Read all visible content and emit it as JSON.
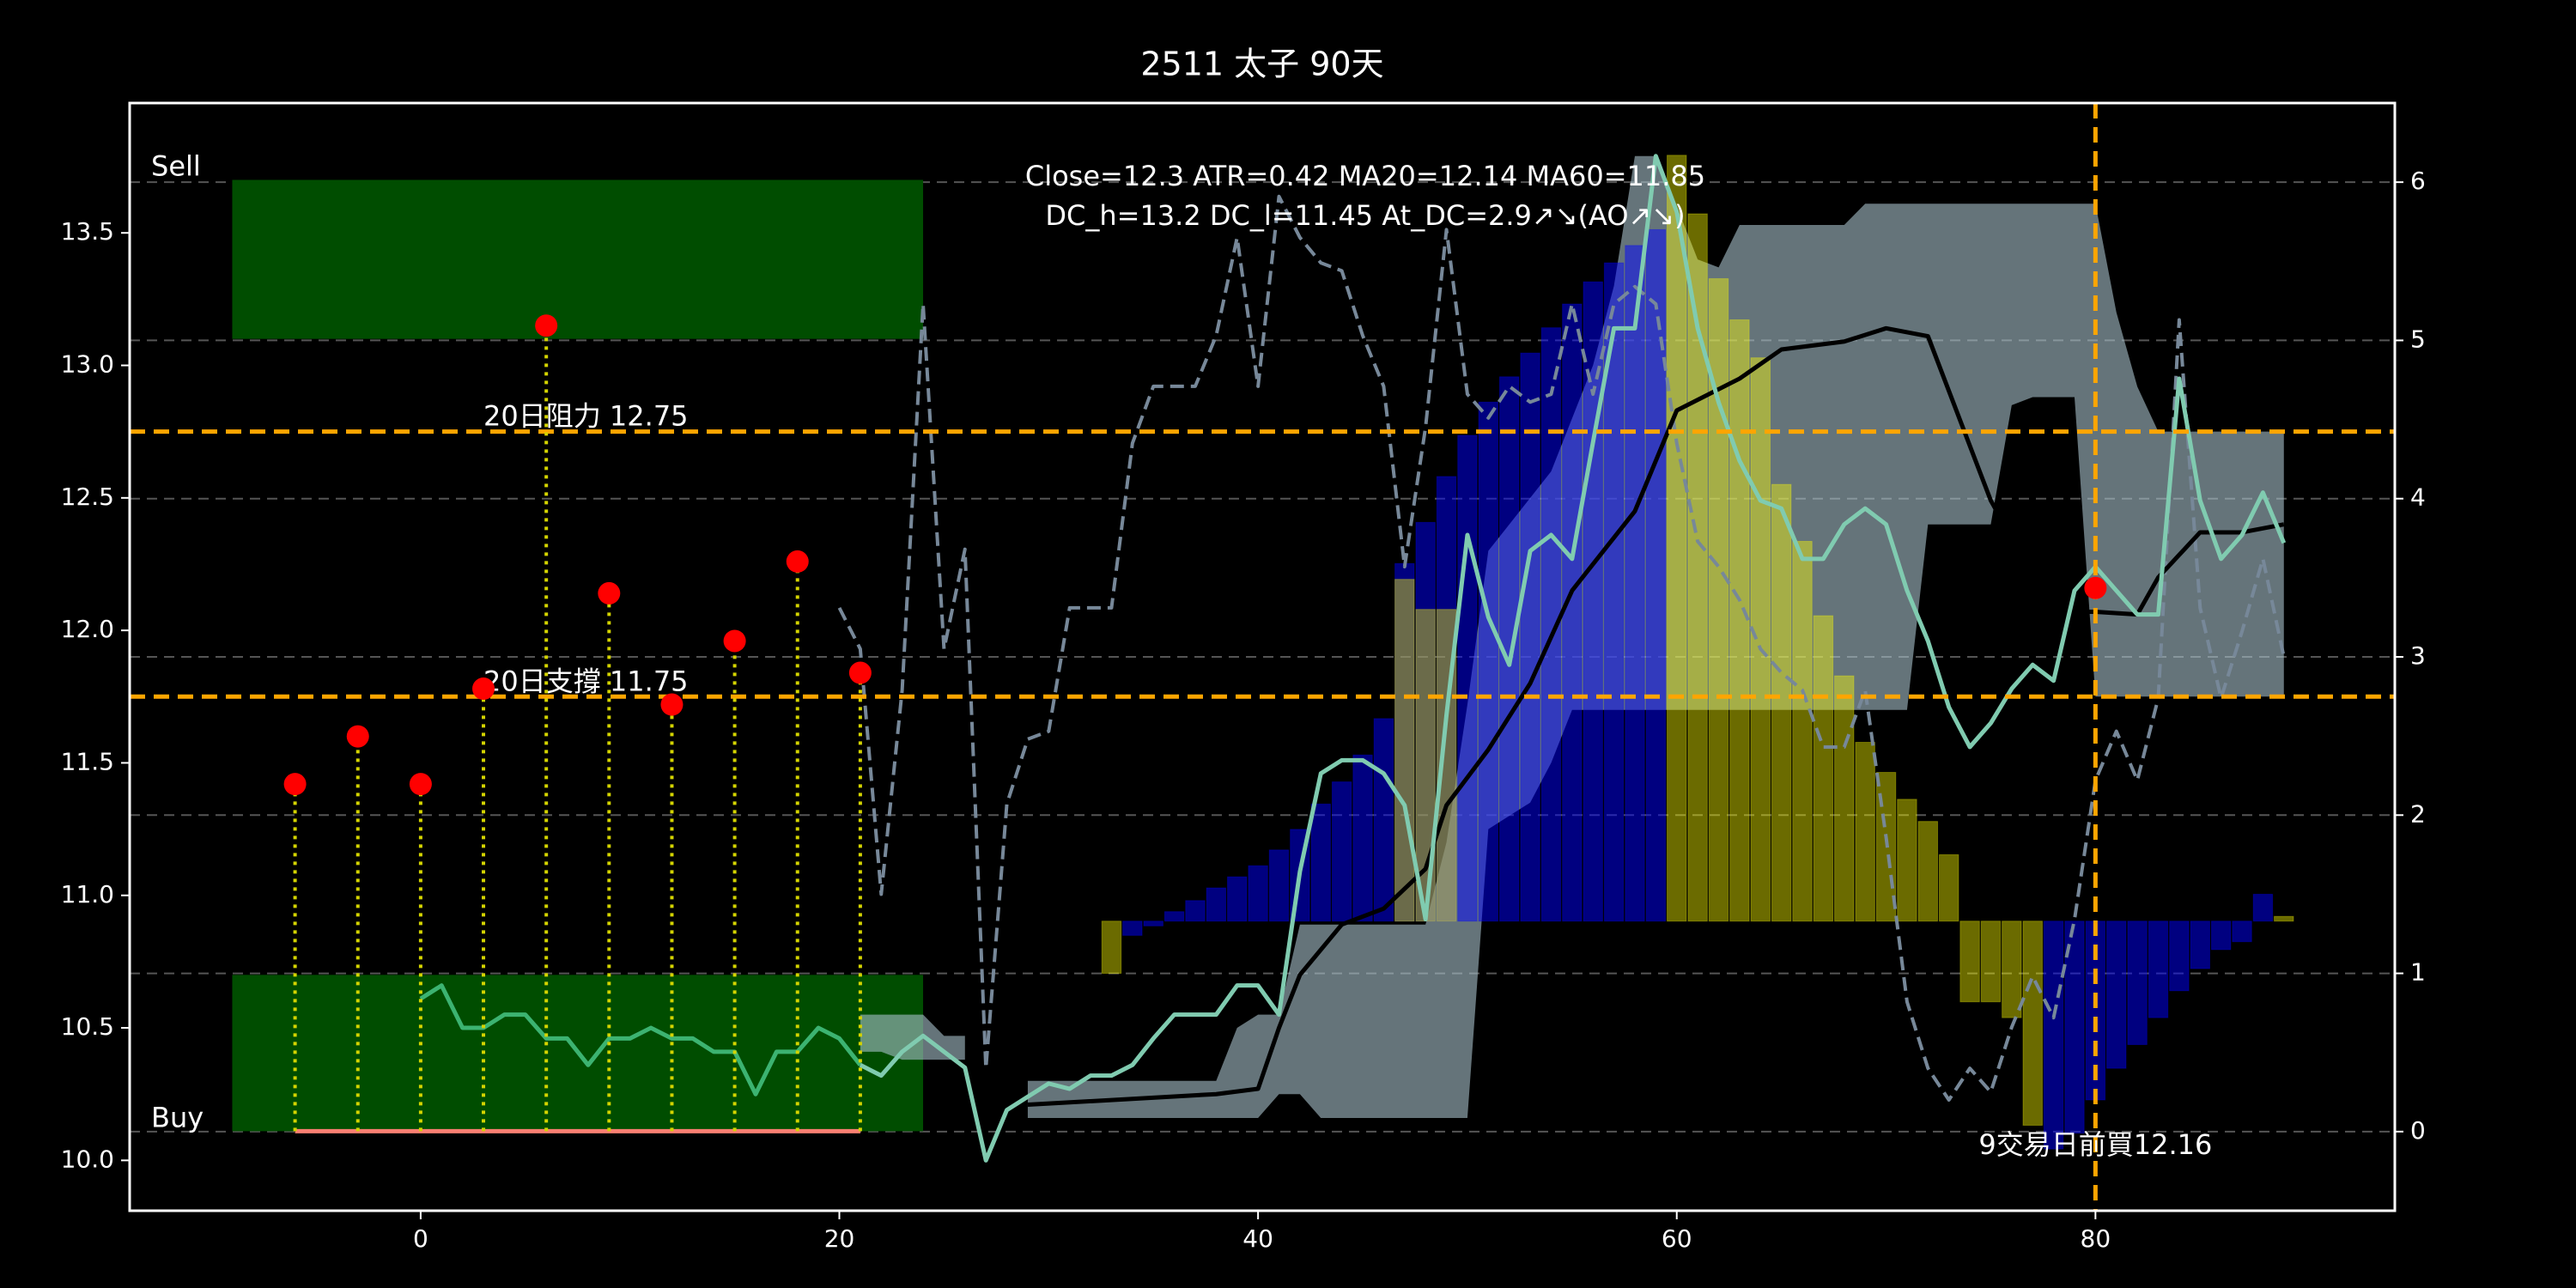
{
  "chart_data": {
    "type": "line",
    "title": "2511 太子 90天",
    "annotation": [
      "Close=12.3 ATR=0.42 MA20=12.14 MA60=11.85",
      "DC_h=13.2 DC_l=11.45 At_DC=2.9↗↘(AO↗↘)"
    ],
    "xlim": [
      -13.9,
      94.3
    ],
    "xticks": [
      0,
      20,
      40,
      60,
      80
    ],
    "ylim": [
      9.81,
      13.99
    ],
    "yticks": [
      {
        "value": 10,
        "label": "10.0"
      },
      10.5,
      {
        "value": 11,
        "label": "11.0"
      },
      11.5,
      {
        "value": 12,
        "label": "12.0"
      },
      12.5,
      {
        "value": 13,
        "label": "13.0"
      },
      13.5
    ],
    "y2lim": [
      -0.5,
      6.5
    ],
    "y2ticks": [
      0,
      1,
      2,
      3,
      4,
      5,
      6
    ],
    "grid": true,
    "zones": [
      {
        "label": "Sell",
        "x": [
          -9,
          24
        ],
        "y": [
          13.1,
          13.7
        ],
        "color": "#004d00"
      },
      {
        "label": "Buy",
        "x": [
          -9,
          24
        ],
        "y": [
          10.11,
          10.7
        ],
        "color": "#004d00"
      }
    ],
    "hlines": [
      {
        "value": 12.75,
        "label": "20日阻力 12.75",
        "color": "#ffa500"
      },
      {
        "value": 11.75,
        "label": "20日支撐 11.75",
        "color": "#ffa500"
      }
    ],
    "buy_marker": {
      "x": 80,
      "value": 12.16,
      "label": "9交易日前買12.16",
      "color": "#ff0000",
      "line_color": "#ffa500"
    },
    "signals": {
      "x": [
        -6,
        -3,
        0,
        3,
        6,
        9,
        12,
        15,
        18,
        21
      ],
      "values": [
        11.42,
        11.6,
        11.42,
        11.78,
        13.15,
        12.14,
        11.72,
        11.96,
        12.26,
        11.84
      ],
      "color": "#ff0000",
      "stem_color": "#d4d400",
      "base": 10.11,
      "base_color": "#fa8072"
    },
    "channel": {
      "color": "#a9c1cc",
      "x": [
        21,
        22,
        23,
        24,
        25,
        26,
        27,
        28,
        29,
        30,
        31,
        32,
        33,
        34,
        35,
        36,
        37,
        38,
        39,
        40,
        41,
        42,
        43,
        44,
        45,
        46,
        47,
        48,
        49,
        50,
        51,
        52,
        53,
        54,
        55,
        56,
        57,
        58,
        59,
        60,
        61,
        62,
        63,
        64,
        65,
        66,
        67,
        68,
        69,
        70,
        71,
        72,
        73,
        74,
        75,
        76,
        77,
        78,
        79,
        80,
        81,
        82,
        83,
        84,
        85,
        86,
        87,
        88,
        89
      ],
      "upper": [
        10.55,
        10.55,
        10.55,
        10.55,
        10.47,
        10.47,
        null,
        null,
        10.3,
        10.3,
        10.3,
        10.3,
        10.3,
        10.3,
        10.3,
        10.3,
        10.3,
        10.3,
        10.5,
        10.55,
        10.55,
        10.89,
        10.89,
        10.89,
        10.89,
        10.89,
        10.89,
        10.89,
        11.2,
        11.72,
        12.3,
        12.4,
        12.5,
        12.6,
        12.8,
        13.0,
        13.3,
        13.79,
        13.79,
        13.6,
        13.4,
        13.37,
        13.53,
        13.53,
        13.53,
        13.53,
        13.53,
        13.53,
        13.61,
        13.61,
        13.61,
        13.61,
        13.61,
        13.61,
        13.61,
        13.61,
        13.61,
        13.61,
        13.61,
        13.61,
        13.2,
        12.92,
        12.75,
        12.75,
        12.75,
        12.75,
        12.75,
        12.75,
        12.75
      ],
      "lower": [
        10.41,
        10.41,
        10.38,
        10.38,
        10.38,
        10.38,
        null,
        null,
        10.16,
        10.16,
        10.16,
        10.16,
        10.16,
        10.16,
        10.16,
        10.16,
        10.16,
        10.16,
        10.16,
        10.16,
        10.25,
        10.25,
        10.16,
        10.16,
        10.16,
        10.16,
        10.16,
        10.16,
        10.16,
        10.16,
        11.25,
        11.3,
        11.35,
        11.5,
        11.7,
        11.7,
        11.7,
        11.7,
        11.7,
        11.7,
        11.7,
        11.7,
        11.7,
        11.7,
        11.7,
        11.7,
        11.7,
        11.7,
        11.7,
        11.7,
        11.7,
        12.4,
        12.4,
        12.4,
        12.4,
        12.85,
        12.88,
        12.88,
        12.88,
        11.75,
        11.75,
        11.75,
        11.75,
        11.75,
        11.75,
        11.75,
        11.75,
        11.75,
        11.75
      ]
    },
    "histogram": {
      "axis": "y2",
      "base": 1.33,
      "x": [
        33,
        34,
        35,
        36,
        37,
        38,
        39,
        40,
        41,
        42,
        43,
        44,
        45,
        46,
        47,
        48,
        49,
        50,
        51,
        52,
        53,
        54,
        55,
        56,
        57,
        58,
        59,
        60,
        61,
        62,
        63,
        64,
        65,
        66,
        67,
        68,
        69,
        70,
        71,
        72,
        73,
        74,
        75,
        76,
        77,
        78,
        79,
        80,
        81,
        82,
        83,
        84,
        85,
        86,
        87,
        88,
        89
      ],
      "series": [
        {
          "color": "#0000ff",
          "values": [
            null,
            1.24,
            1.3,
            1.39,
            1.46,
            1.54,
            1.61,
            1.68,
            1.78,
            1.91,
            2.07,
            2.21,
            2.38,
            2.61,
            3.59,
            3.85,
            4.14,
            4.4,
            4.61,
            4.77,
            4.92,
            5.08,
            5.23,
            5.37,
            5.49,
            5.6,
            5.7,
            null,
            null,
            null,
            null,
            null,
            null,
            null,
            null,
            null,
            null,
            null,
            null,
            null,
            null,
            null,
            null,
            null,
            null,
            -0.11,
            -0.01,
            0.2,
            0.4,
            0.55,
            0.72,
            0.89,
            1.03,
            1.15,
            1.2,
            1.5,
            null
          ]
        },
        {
          "color": "#ffff00",
          "values": [
            1.0,
            null,
            null,
            null,
            null,
            null,
            null,
            null,
            null,
            null,
            null,
            null,
            null,
            null,
            3.49,
            3.3,
            3.3,
            null,
            null,
            null,
            null,
            null,
            null,
            null,
            null,
            null,
            null,
            6.17,
            5.8,
            5.39,
            5.13,
            4.89,
            4.09,
            3.73,
            3.26,
            2.88,
            2.46,
            2.27,
            2.1,
            1.96,
            1.75,
            0.82,
            0.82,
            0.72,
            0.04,
            null,
            null,
            null,
            null,
            null,
            null,
            null,
            null,
            null,
            null,
            null,
            1.36
          ]
        }
      ]
    },
    "series": [
      {
        "color": "#778899",
        "dash": true,
        "axis": "y2",
        "x": [
          20,
          21,
          22,
          23,
          24,
          25,
          26,
          27,
          28,
          29,
          30,
          31,
          32,
          33,
          34,
          35,
          36,
          37,
          38,
          39,
          40,
          41,
          42,
          43,
          44,
          45,
          46,
          47,
          48,
          49,
          50,
          51,
          52,
          53,
          54,
          55,
          56,
          57,
          58,
          59,
          60,
          61,
          62,
          63,
          64,
          65,
          66,
          67,
          68,
          69,
          70,
          71,
          72,
          73,
          74,
          75,
          76,
          77,
          78,
          79,
          80,
          81,
          82,
          83,
          84,
          85,
          86,
          87,
          88,
          89
        ],
        "values": [
          3.31,
          3.05,
          1.5,
          2.79,
          5.23,
          3.05,
          3.68,
          0.4,
          2.07,
          2.48,
          2.53,
          3.31,
          3.31,
          3.31,
          4.35,
          4.71,
          4.71,
          4.71,
          5.03,
          5.65,
          4.71,
          5.91,
          5.65,
          5.49,
          5.44,
          5.03,
          4.71,
          3.57,
          4.45,
          5.7,
          4.66,
          4.51,
          4.71,
          4.61,
          4.66,
          5.23,
          4.66,
          5.23,
          5.34,
          5.23,
          4.35,
          3.73,
          3.57,
          3.36,
          3.05,
          2.9,
          2.79,
          2.43,
          2.43,
          2.79,
          1.86,
          0.82,
          0.4,
          0.2,
          0.4,
          0.25,
          0.66,
          0.98,
          0.72,
          1.34,
          2.22,
          2.53,
          2.22,
          2.74,
          5.13,
          3.31,
          2.74,
          3.16,
          3.62,
          3.0
        ]
      },
      {
        "color": "#000000",
        "x": [
          29,
          38,
          40,
          41,
          42,
          44,
          46,
          48,
          49,
          51,
          53,
          55,
          58,
          60,
          63,
          65,
          68,
          70,
          72,
          75,
          78,
          80,
          82,
          83,
          85,
          87,
          89
        ],
        "values": [
          10.21,
          10.25,
          10.27,
          10.5,
          10.7,
          10.89,
          10.95,
          11.1,
          11.34,
          11.55,
          11.8,
          12.15,
          12.45,
          12.83,
          12.95,
          13.06,
          13.09,
          13.14,
          13.11,
          12.49,
          12.07,
          12.07,
          12.06,
          12.2,
          12.37,
          12.37,
          12.4
        ]
      },
      {
        "color": "#3cb371",
        "x": [
          0,
          1,
          2,
          3,
          4,
          5,
          6,
          7,
          8,
          9,
          10,
          11,
          12,
          13,
          14,
          15,
          16,
          17,
          18,
          19,
          20,
          21
        ],
        "values": [
          10.61,
          10.66,
          10.5,
          10.5,
          10.55,
          10.55,
          10.46,
          10.46,
          10.36,
          10.46,
          10.46,
          10.5,
          10.46,
          10.46,
          10.41,
          10.41,
          10.25,
          10.41,
          10.41,
          10.5,
          10.46,
          10.36
        ]
      },
      {
        "color": "#80cbb0",
        "x": [
          21,
          22,
          23,
          24,
          25,
          26,
          27,
          28,
          29,
          30,
          31,
          32,
          33,
          34,
          35,
          36,
          37,
          38,
          39,
          40,
          41,
          42,
          43,
          44,
          45,
          46,
          47,
          48,
          49,
          50,
          51,
          52,
          53,
          54,
          55,
          56,
          57,
          58,
          59,
          60,
          61,
          62,
          63,
          64,
          65,
          66,
          67,
          68,
          69,
          70,
          71,
          72,
          73,
          74,
          75,
          76,
          77,
          78,
          79,
          80,
          81,
          82,
          83,
          84,
          85,
          86,
          87,
          88,
          89
        ],
        "values": [
          10.36,
          10.32,
          10.41,
          10.47,
          10.41,
          10.35,
          10.0,
          10.19,
          10.24,
          10.29,
          10.27,
          10.32,
          10.32,
          10.36,
          10.46,
          10.55,
          10.55,
          10.55,
          10.66,
          10.66,
          10.55,
          11.09,
          11.46,
          11.51,
          11.51,
          11.46,
          11.34,
          10.91,
          11.68,
          12.36,
          12.05,
          11.87,
          12.3,
          12.36,
          12.27,
          12.71,
          13.14,
          13.14,
          13.79,
          13.58,
          13.14,
          12.86,
          12.64,
          12.49,
          12.46,
          12.27,
          12.27,
          12.4,
          12.46,
          12.4,
          12.15,
          11.96,
          11.71,
          11.56,
          11.65,
          11.78,
          11.87,
          11.81,
          12.15,
          12.24,
          12.15,
          12.06,
          12.06,
          12.95,
          12.49,
          12.27,
          12.36,
          12.52,
          12.33
        ]
      }
    ]
  }
}
